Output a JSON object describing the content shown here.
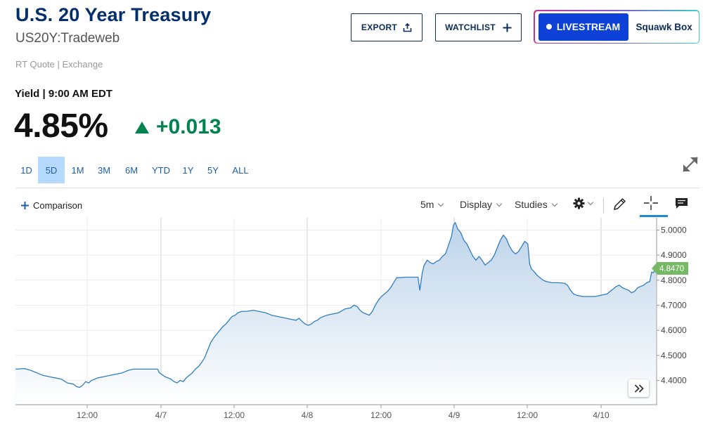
{
  "header": {
    "title": "U.S. 20 Year Treasury",
    "symbol": "US20Y:Tradeweb",
    "rt_quote": "RT Quote | Exchange"
  },
  "actions": {
    "export_label": "EXPORT",
    "watchlist_label": "WATCHLIST",
    "livestream_label": "LIVESTREAM",
    "squawk_label": "Squawk Box"
  },
  "quote": {
    "yield_label": "Yield | 9:00 AM EDT",
    "price": "4.85%",
    "change": "+0.013",
    "direction": "up",
    "up_color": "#00834f"
  },
  "ranges": [
    {
      "label": "1D"
    },
    {
      "label": "5D",
      "active": true
    },
    {
      "label": "1M"
    },
    {
      "label": "3M"
    },
    {
      "label": "6M"
    },
    {
      "label": "YTD"
    },
    {
      "label": "1Y"
    },
    {
      "label": "5Y"
    },
    {
      "label": "ALL"
    }
  ],
  "toolbar": {
    "comparison_label": "Comparison",
    "interval_label": "5m",
    "display_label": "Display",
    "studies_label": "Studies",
    "icons": [
      "gear-icon",
      "pencil-icon",
      "crosshair-icon",
      "comment-icon"
    ]
  },
  "chart_data": {
    "type": "area",
    "x_tick_labels": [
      "12:00",
      "4/7",
      "12:00",
      "4/8",
      "12:00",
      "4/9",
      "12:00",
      "4/10"
    ],
    "y_tick_labels": [
      "5.0000",
      "4.9000",
      "4.8000",
      "4.7000",
      "4.6000",
      "4.5000",
      "4.4000"
    ],
    "ylim": [
      4.33,
      5.06
    ],
    "last_value": 4.847,
    "last_value_label": "4.8470",
    "line_color": "#2f7ec0",
    "fill_color": "#bcd3ea",
    "badge_color": "#75b964",
    "points": [
      [
        0,
        4.445
      ],
      [
        1.5,
        4.447
      ],
      [
        2.5,
        4.44
      ],
      [
        3.5,
        4.43
      ],
      [
        4.5,
        4.42
      ],
      [
        5.5,
        4.415
      ],
      [
        6.5,
        4.41
      ],
      [
        7.5,
        4.405
      ],
      [
        8.5,
        4.39
      ],
      [
        9.5,
        4.385
      ],
      [
        10,
        4.375
      ],
      [
        10.5,
        4.372
      ],
      [
        11,
        4.38
      ],
      [
        11.5,
        4.395
      ],
      [
        12,
        4.39
      ],
      [
        12.5,
        4.4
      ],
      [
        13.5,
        4.41
      ],
      [
        14.5,
        4.415
      ],
      [
        15.5,
        4.42
      ],
      [
        16.5,
        4.425
      ],
      [
        17.5,
        4.43
      ],
      [
        18.5,
        4.44
      ],
      [
        19.3,
        4.445
      ],
      [
        20.5,
        4.445
      ],
      [
        21.5,
        4.445
      ],
      [
        22.5,
        4.445
      ],
      [
        23.3,
        4.445
      ],
      [
        23.6,
        4.43
      ],
      [
        24.5,
        4.415
      ],
      [
        25.5,
        4.405
      ],
      [
        26,
        4.395
      ],
      [
        26.5,
        4.39
      ],
      [
        27,
        4.4
      ],
      [
        27.5,
        4.395
      ],
      [
        28,
        4.41
      ],
      [
        28.5,
        4.42
      ],
      [
        29,
        4.43
      ],
      [
        29.5,
        4.445
      ],
      [
        30,
        4.455
      ],
      [
        30.5,
        4.47
      ],
      [
        31,
        4.49
      ],
      [
        31.5,
        4.52
      ],
      [
        32,
        4.55
      ],
      [
        32.5,
        4.57
      ],
      [
        33,
        4.585
      ],
      [
        33.5,
        4.6
      ],
      [
        34,
        4.615
      ],
      [
        34.5,
        4.625
      ],
      [
        35,
        4.64
      ],
      [
        35.5,
        4.655
      ],
      [
        36,
        4.66
      ],
      [
        36.5,
        4.67
      ],
      [
        37,
        4.675
      ],
      [
        38,
        4.676
      ],
      [
        39,
        4.68
      ],
      [
        40,
        4.675
      ],
      [
        41,
        4.67
      ],
      [
        42,
        4.66
      ],
      [
        43,
        4.655
      ],
      [
        44,
        4.65
      ],
      [
        45,
        4.645
      ],
      [
        46,
        4.64
      ],
      [
        46.5,
        4.648
      ],
      [
        47,
        4.635
      ],
      [
        47.5,
        4.625
      ],
      [
        48,
        4.62
      ],
      [
        48.5,
        4.625
      ],
      [
        49,
        4.635
      ],
      [
        49.5,
        4.64
      ],
      [
        50,
        4.65
      ],
      [
        51,
        4.66
      ],
      [
        52,
        4.665
      ],
      [
        53,
        4.67
      ],
      [
        54,
        4.685
      ],
      [
        55,
        4.69
      ],
      [
        55.5,
        4.7
      ],
      [
        56,
        4.695
      ],
      [
        56.5,
        4.68
      ],
      [
        57,
        4.67
      ],
      [
        57.5,
        4.665
      ],
      [
        58,
        4.66
      ],
      [
        58.5,
        4.675
      ],
      [
        59,
        4.7
      ],
      [
        59.5,
        4.72
      ],
      [
        60,
        4.735
      ],
      [
        60.5,
        4.745
      ],
      [
        61,
        4.755
      ],
      [
        61.5,
        4.77
      ],
      [
        62,
        4.79
      ],
      [
        62.5,
        4.81
      ],
      [
        63,
        4.81
      ],
      [
        64,
        4.812
      ],
      [
        65,
        4.812
      ],
      [
        66,
        4.812
      ],
      [
        66.3,
        4.76
      ],
      [
        66.7,
        4.83
      ],
      [
        67,
        4.86
      ],
      [
        67.5,
        4.88
      ],
      [
        68,
        4.87
      ],
      [
        68.5,
        4.865
      ],
      [
        69,
        4.875
      ],
      [
        69.5,
        4.88
      ],
      [
        70,
        4.895
      ],
      [
        70.5,
        4.905
      ],
      [
        71,
        4.94
      ],
      [
        71.5,
        4.975
      ],
      [
        71.8,
        5.02
      ],
      [
        72.1,
        5.03
      ],
      [
        72.5,
        5.005
      ],
      [
        73,
        4.99
      ],
      [
        73.5,
        4.96
      ],
      [
        74,
        4.945
      ],
      [
        74.5,
        4.92
      ],
      [
        75,
        4.895
      ],
      [
        75.5,
        4.88
      ],
      [
        76,
        4.895
      ],
      [
        76.5,
        4.88
      ],
      [
        77,
        4.86
      ],
      [
        77.5,
        4.87
      ],
      [
        78,
        4.88
      ],
      [
        78.5,
        4.9
      ],
      [
        79,
        4.93
      ],
      [
        79.5,
        4.96
      ],
      [
        80,
        4.98
      ],
      [
        80.5,
        4.965
      ],
      [
        81,
        4.935
      ],
      [
        81.5,
        4.915
      ],
      [
        82,
        4.905
      ],
      [
        82.5,
        4.915
      ],
      [
        83,
        4.935
      ],
      [
        83.5,
        4.955
      ],
      [
        84,
        4.945
      ],
      [
        84.3,
        4.865
      ],
      [
        84.6,
        4.845
      ],
      [
        85,
        4.835
      ],
      [
        85.5,
        4.82
      ],
      [
        86,
        4.81
      ],
      [
        86.5,
        4.8
      ],
      [
        87,
        4.795
      ],
      [
        88,
        4.79
      ],
      [
        89,
        4.79
      ],
      [
        90,
        4.788
      ],
      [
        90.5,
        4.78
      ],
      [
        91,
        4.76
      ],
      [
        91.5,
        4.745
      ],
      [
        92,
        4.74
      ],
      [
        93,
        4.735
      ],
      [
        94,
        4.735
      ],
      [
        95,
        4.735
      ],
      [
        96,
        4.74
      ],
      [
        97,
        4.745
      ],
      [
        97.5,
        4.755
      ],
      [
        98,
        4.765
      ],
      [
        98.5,
        4.775
      ],
      [
        99,
        4.78
      ],
      [
        99.5,
        4.77
      ],
      [
        100,
        4.765
      ],
      [
        100.5,
        4.76
      ],
      [
        101,
        4.75
      ],
      [
        101.5,
        4.755
      ],
      [
        102,
        4.77
      ],
      [
        102.5,
        4.775
      ],
      [
        103,
        4.78
      ],
      [
        103.5,
        4.79
      ],
      [
        104,
        4.795
      ],
      [
        104.3,
        4.832
      ],
      [
        104.6,
        4.83
      ],
      [
        105,
        4.847
      ]
    ]
  }
}
